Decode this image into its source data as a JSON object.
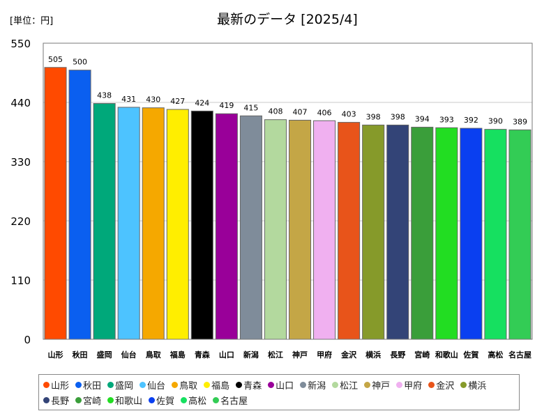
{
  "chart_data": {
    "type": "bar",
    "title": "最新のデータ [2025/4]",
    "unit_label": "[単位：円]",
    "xlabel": "",
    "ylabel": "",
    "ylim": [
      0,
      550
    ],
    "yticks": [
      0,
      110,
      220,
      330,
      440,
      550
    ],
    "grid": true,
    "legend_position": "bottom",
    "categories": [
      "山形",
      "秋田",
      "盛岡",
      "仙台",
      "鳥取",
      "福島",
      "青森",
      "山口",
      "新潟",
      "松江",
      "神戸",
      "甲府",
      "金沢",
      "横浜",
      "長野",
      "宮崎",
      "和歌山",
      "佐賀",
      "高松",
      "名古屋"
    ],
    "values": [
      505,
      500,
      438,
      431,
      430,
      427,
      424,
      419,
      415,
      408,
      407,
      406,
      403,
      398,
      398,
      394,
      393,
      392,
      390,
      389
    ],
    "colors": [
      "#ff4a00",
      "#0a5ff0",
      "#00a87a",
      "#4dc3ff",
      "#f5a800",
      "#ffee00",
      "#000000",
      "#990099",
      "#7f8c9a",
      "#b3d99e",
      "#c4a646",
      "#f0b0f0",
      "#e8541a",
      "#869a2a",
      "#334477",
      "#3a9e3a",
      "#22dd22",
      "#0a3ff0",
      "#16e060",
      "#33cc55"
    ]
  }
}
